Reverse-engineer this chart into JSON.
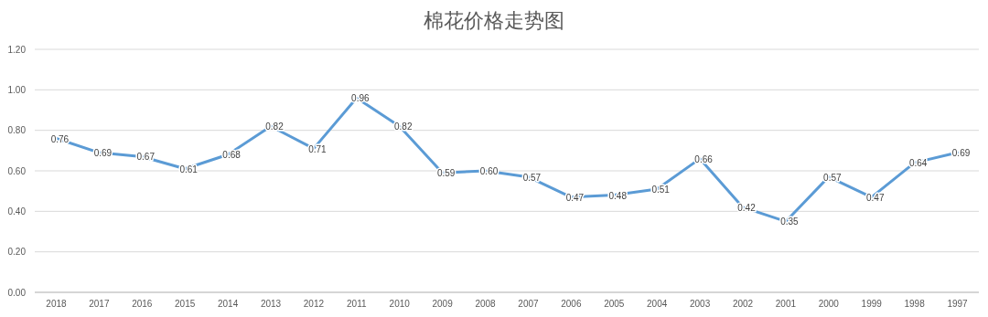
{
  "chart_data": {
    "type": "line",
    "title": "棉花价格走势图",
    "categories": [
      "2018",
      "2017",
      "2016",
      "2015",
      "2014",
      "2013",
      "2012",
      "2011",
      "2010",
      "2009",
      "2008",
      "2007",
      "2006",
      "2005",
      "2004",
      "2003",
      "2002",
      "2001",
      "2000",
      "1999",
      "1998",
      "1997"
    ],
    "series": [
      {
        "color": "#5b9bd5",
        "values": [
          0.76,
          0.69,
          0.67,
          0.61,
          0.68,
          0.82,
          0.71,
          0.96,
          0.82,
          0.59,
          0.6,
          0.57,
          0.47,
          0.48,
          0.51,
          0.66,
          0.42,
          0.35,
          0.57,
          0.47,
          0.64,
          0.69
        ],
        "value_labels": [
          "0.76",
          "0.69",
          "0.67",
          "0.61",
          "0.68",
          "0.82",
          "0.71",
          "0.96",
          "0.82",
          "0.59",
          "0.60",
          "0.57",
          "0.47",
          "0.48",
          "0.51",
          "0.66",
          "0.42",
          "0.35",
          "0.57",
          "0.47",
          "0.64",
          "0.69"
        ]
      }
    ],
    "ylim": [
      0,
      1.2
    ],
    "yticks": [
      {
        "value": 0,
        "label": "0.00"
      },
      {
        "value": 0.2,
        "label": "0.20"
      },
      {
        "value": 0.4,
        "label": "0.40"
      },
      {
        "value": 0.6,
        "label": "0.60"
      },
      {
        "value": 0.8,
        "label": "0.80"
      },
      {
        "value": 1,
        "label": "1.00"
      },
      {
        "value": 1.2,
        "label": "1.20"
      }
    ],
    "grid": "y",
    "marker": "none",
    "line_style": "solid"
  }
}
